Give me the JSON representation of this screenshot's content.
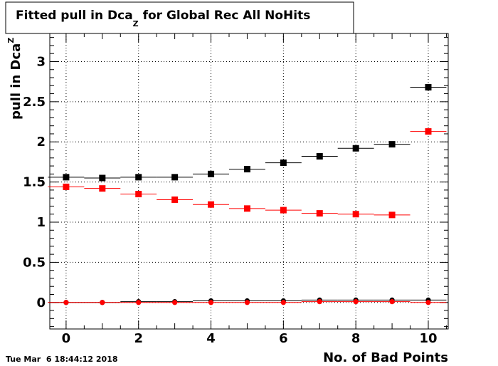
{
  "chart_data": {
    "type": "scatter",
    "title": {
      "prefix": "Fitted pull in Dca",
      "subscript": "Z",
      "suffix": " for Global Rec All NoHits"
    },
    "xlabel": "No. of Bad Points",
    "ylabel": {
      "prefix": "pull in Dca",
      "subscript": "Z"
    },
    "xlim": [
      -0.45,
      10.55
    ],
    "ylim": [
      -0.33,
      3.35
    ],
    "x_ticks": [
      0,
      2,
      4,
      6,
      8,
      10
    ],
    "y_ticks": [
      0,
      0.5,
      1,
      1.5,
      2,
      2.5,
      3
    ],
    "x_tick_labels": [
      "0",
      "2",
      "4",
      "6",
      "8",
      "10"
    ],
    "y_tick_labels": [
      "0",
      "0.5",
      "1",
      "1.5",
      "2",
      "2.5",
      "3"
    ],
    "grid": true,
    "legend": "none",
    "bin_half_width": 0.5,
    "series": [
      {
        "color": "#000000",
        "marker": "square",
        "x": [
          0,
          1,
          2,
          3,
          4,
          5,
          6,
          7,
          8,
          9,
          10
        ],
        "values": [
          1.56,
          1.55,
          1.56,
          1.56,
          1.6,
          1.66,
          1.74,
          1.82,
          1.92,
          1.97,
          2.68
        ]
      },
      {
        "color": "#ff0000",
        "marker": "square",
        "x": [
          0,
          1,
          2,
          3,
          4,
          5,
          6,
          7,
          8,
          9,
          10
        ],
        "values": [
          1.44,
          1.42,
          1.35,
          1.28,
          1.22,
          1.17,
          1.15,
          1.11,
          1.1,
          1.09,
          2.13
        ]
      },
      {
        "color": "#000000",
        "marker": "circle",
        "x": [
          0,
          1,
          2,
          3,
          4,
          5,
          6,
          7,
          8,
          9,
          10
        ],
        "values": [
          0.0,
          0.0,
          0.01,
          0.01,
          0.02,
          0.02,
          0.02,
          0.03,
          0.03,
          0.03,
          0.03
        ]
      },
      {
        "color": "#ff0000",
        "marker": "circle",
        "x": [
          0,
          1,
          2,
          3,
          4,
          5,
          6,
          7,
          8,
          9,
          10
        ],
        "values": [
          0.0,
          0.0,
          0.0,
          0.0,
          0.0,
          0.0,
          0.0,
          0.01,
          0.01,
          0.01,
          0.0
        ]
      }
    ]
  },
  "timestamp": "Tue Mar  6 18:44:12 2018"
}
